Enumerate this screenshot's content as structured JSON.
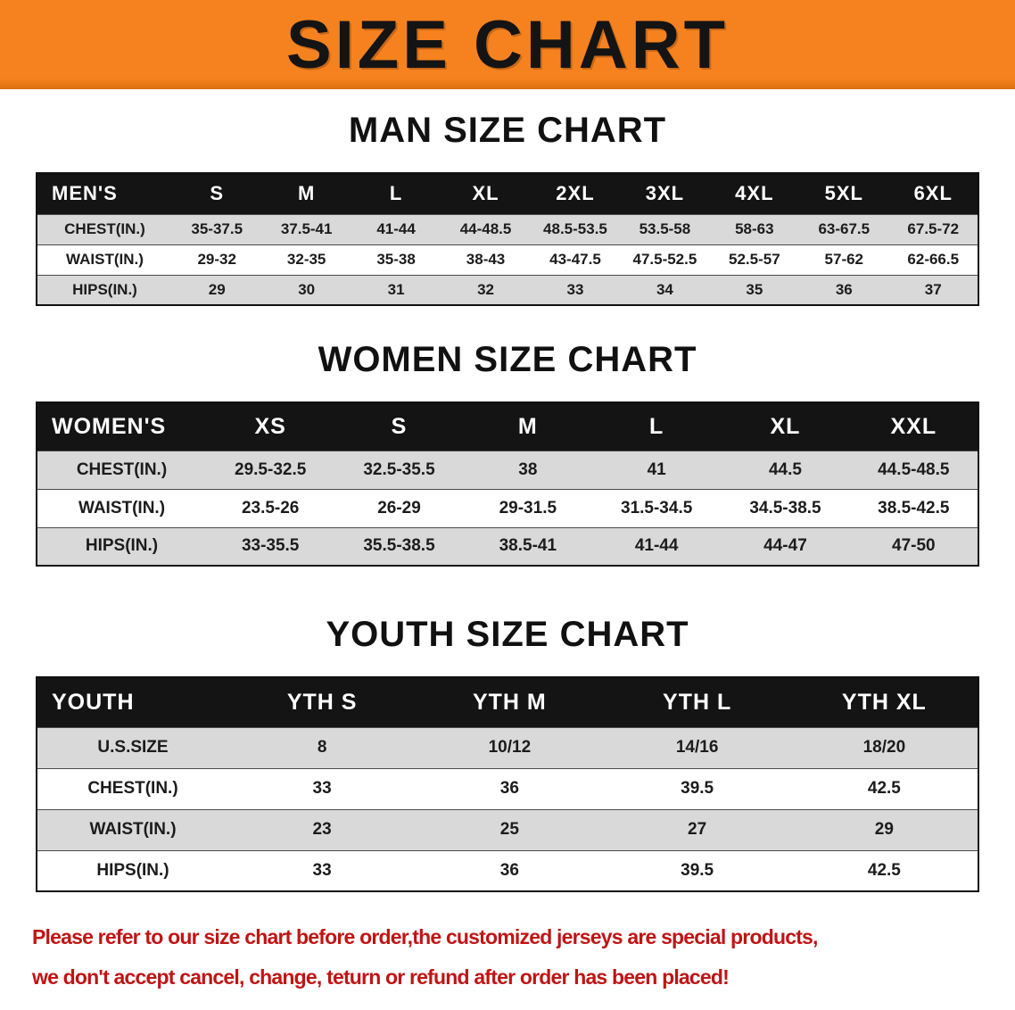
{
  "colors": {
    "banner-bg": "#f6821f",
    "header-bg": "#141414",
    "header-text": "#ffffff",
    "stripe": "#d9d9d9",
    "notice-red": "#c01414"
  },
  "banner": {
    "title": "SIZE CHART"
  },
  "tables": [
    {
      "heading": "MAN SIZE CHART",
      "header": {
        "label": "MEN'S",
        "sizes": [
          "S",
          "M",
          "L",
          "XL",
          "2XL",
          "3XL",
          "4XL",
          "5XL",
          "6XL"
        ]
      },
      "rows": [
        {
          "label": "CHEST(IN.)",
          "values": [
            "35-37.5",
            "37.5-41",
            "41-44",
            "44-48.5",
            "48.5-53.5",
            "53.5-58",
            "58-63",
            "63-67.5",
            "67.5-72"
          ]
        },
        {
          "label": "WAIST(IN.)",
          "values": [
            "29-32",
            "32-35",
            "35-38",
            "38-43",
            "43-47.5",
            "47.5-52.5",
            "52.5-57",
            "57-62",
            "62-66.5"
          ]
        },
        {
          "label": "HIPS(IN.)",
          "values": [
            "29",
            "30",
            "31",
            "32",
            "33",
            "34",
            "35",
            "36",
            "37"
          ]
        }
      ]
    },
    {
      "heading": "WOMEN SIZE CHART",
      "header": {
        "label": "WOMEN'S",
        "sizes": [
          "XS",
          "S",
          "M",
          "L",
          "XL",
          "XXL"
        ]
      },
      "rows": [
        {
          "label": "CHEST(IN.)",
          "values": [
            "29.5-32.5",
            "32.5-35.5",
            "38",
            "41",
            "44.5",
            "44.5-48.5"
          ]
        },
        {
          "label": "WAIST(IN.)",
          "values": [
            "23.5-26",
            "26-29",
            "29-31.5",
            "31.5-34.5",
            "34.5-38.5",
            "38.5-42.5"
          ]
        },
        {
          "label": "HIPS(IN.)",
          "values": [
            "33-35.5",
            "35.5-38.5",
            "38.5-41",
            "41-44",
            "44-47",
            "47-50"
          ]
        }
      ]
    },
    {
      "heading": "YOUTH SIZE CHART",
      "header": {
        "label": "YOUTH",
        "sizes": [
          "YTH S",
          "YTH M",
          "YTH L",
          "YTH XL"
        ]
      },
      "rows": [
        {
          "label": "U.S.SIZE",
          "values": [
            "8",
            "10/12",
            "14/16",
            "18/20"
          ]
        },
        {
          "label": "CHEST(IN.)",
          "values": [
            "33",
            "36",
            "39.5",
            "42.5"
          ]
        },
        {
          "label": "WAIST(IN.)",
          "values": [
            "23",
            "25",
            "27",
            "29"
          ]
        },
        {
          "label": "HIPS(IN.)",
          "values": [
            "33",
            "36",
            "39.5",
            "42.5"
          ]
        }
      ]
    }
  ],
  "footer": {
    "line1": "Please refer to our size chart before order,the customized jerseys are special products,",
    "line2": "we don't accept cancel, change, teturn or refund after order has been placed!"
  }
}
